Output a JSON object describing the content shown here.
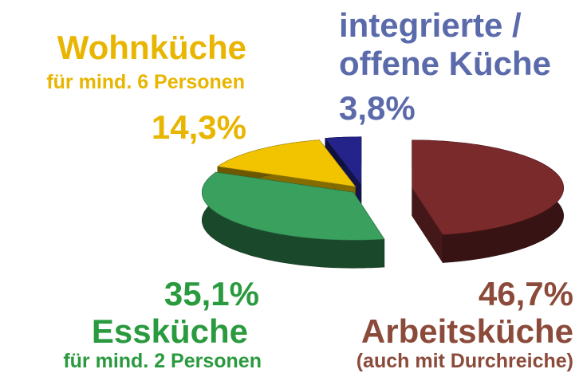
{
  "chart_data": {
    "type": "pie3d",
    "categories": [
      "Arbeitsküche",
      "Essküche",
      "Wohnküche",
      "integrierte / offene Küche"
    ],
    "category_notes": [
      "(auch mit Durchreiche)",
      "für mind. 2 Personen",
      "für mind. 6 Personen",
      null
    ],
    "values": [
      46.7,
      35.1,
      14.3,
      3.8
    ],
    "value_labels": [
      "46,7%",
      "35,1%",
      "14,3%",
      "3,8%"
    ],
    "colors": [
      "#7b2a2c",
      "#3aa05e",
      "#f2c400",
      "#23238a"
    ],
    "label_colors": [
      "#8b4a3a",
      "#2a9a3e",
      "#e8b500",
      "#5a6aaa"
    ]
  }
}
